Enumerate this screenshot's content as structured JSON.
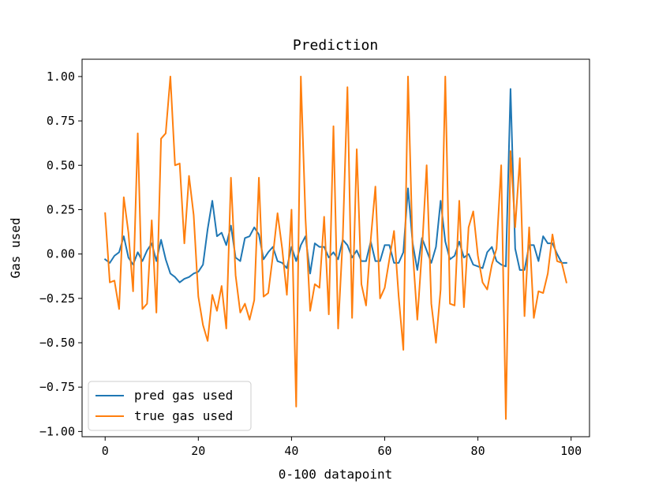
{
  "chart_data": {
    "type": "line",
    "title": "Prediction",
    "xlabel": "0-100 datapoint",
    "ylabel": "Gas used",
    "xlim": [
      -4.95,
      103.95
    ],
    "ylim": [
      -1.0295,
      1.0975
    ],
    "xticks": [
      0,
      20,
      40,
      60,
      80,
      100
    ],
    "xtick_labels": [
      "0",
      "20",
      "40",
      "60",
      "80",
      "100"
    ],
    "yticks": [
      -1.0,
      -0.75,
      -0.5,
      -0.25,
      0.0,
      0.25,
      0.5,
      0.75,
      1.0
    ],
    "ytick_labels": [
      "−1.00",
      "−0.75",
      "−0.50",
      "−0.25",
      "0.00",
      "0.25",
      "0.50",
      "0.75",
      "1.00"
    ],
    "grid": false,
    "legend_position": "lower-left",
    "x": [
      0,
      1,
      2,
      3,
      4,
      5,
      6,
      7,
      8,
      9,
      10,
      11,
      12,
      13,
      14,
      15,
      16,
      17,
      18,
      19,
      20,
      21,
      22,
      23,
      24,
      25,
      26,
      27,
      28,
      29,
      30,
      31,
      32,
      33,
      34,
      35,
      36,
      37,
      38,
      39,
      40,
      41,
      42,
      43,
      44,
      45,
      46,
      47,
      48,
      49,
      50,
      51,
      52,
      53,
      54,
      55,
      56,
      57,
      58,
      59,
      60,
      61,
      62,
      63,
      64,
      65,
      66,
      67,
      68,
      69,
      70,
      71,
      72,
      73,
      74,
      75,
      76,
      77,
      78,
      79,
      80,
      81,
      82,
      83,
      84,
      85,
      86,
      87,
      88,
      89,
      90,
      91,
      92,
      93,
      94,
      95,
      96,
      97,
      98,
      99
    ],
    "series": [
      {
        "name": "pred gas used",
        "color": "#1f77b4",
        "values": [
          -0.03,
          -0.05,
          -0.01,
          0.01,
          0.1,
          -0.02,
          -0.06,
          0.01,
          -0.04,
          0.02,
          0.06,
          -0.04,
          0.08,
          -0.03,
          -0.11,
          -0.13,
          -0.16,
          -0.14,
          -0.13,
          -0.11,
          -0.1,
          -0.06,
          0.14,
          0.3,
          0.1,
          0.12,
          0.05,
          0.16,
          -0.02,
          -0.04,
          0.09,
          0.1,
          0.15,
          0.11,
          -0.03,
          0.01,
          0.04,
          -0.04,
          -0.05,
          -0.08,
          0.04,
          -0.04,
          0.05,
          0.1,
          -0.11,
          0.06,
          0.04,
          0.04,
          -0.02,
          0.01,
          -0.03,
          0.08,
          0.05,
          -0.02,
          0.02,
          -0.04,
          -0.04,
          0.07,
          -0.04,
          -0.04,
          0.05,
          0.05,
          -0.05,
          -0.05,
          0.01,
          0.37,
          0.06,
          -0.09,
          0.09,
          0.02,
          -0.05,
          0.04,
          0.3,
          0.07,
          -0.03,
          -0.01,
          0.07,
          -0.02,
          0.0,
          -0.06,
          -0.07,
          -0.08,
          0.01,
          0.04,
          -0.04,
          -0.06,
          -0.07,
          0.93,
          0.03,
          -0.09,
          -0.09,
          0.05,
          0.05,
          -0.04,
          0.1,
          0.06,
          0.06,
          0.0,
          -0.05,
          -0.05
        ]
      },
      {
        "name": "true gas used",
        "color": "#ff7f0e",
        "values": [
          0.23,
          -0.16,
          -0.15,
          -0.31,
          0.32,
          0.12,
          -0.21,
          0.68,
          -0.31,
          -0.28,
          0.19,
          -0.33,
          0.65,
          0.68,
          1.0,
          0.5,
          0.51,
          0.06,
          0.44,
          0.22,
          -0.24,
          -0.4,
          -0.49,
          -0.23,
          -0.32,
          -0.18,
          -0.42,
          0.43,
          -0.12,
          -0.33,
          -0.28,
          -0.37,
          -0.26,
          0.43,
          -0.24,
          -0.22,
          -0.01,
          0.23,
          0.03,
          -0.23,
          0.25,
          -0.86,
          1.0,
          0.2,
          -0.32,
          -0.17,
          -0.19,
          0.21,
          -0.34,
          0.72,
          -0.42,
          0.09,
          0.94,
          -0.36,
          0.59,
          -0.17,
          -0.29,
          0.08,
          0.38,
          -0.25,
          -0.19,
          -0.03,
          0.13,
          -0.24,
          -0.54,
          1.0,
          0.02,
          -0.37,
          0.02,
          0.5,
          -0.28,
          -0.5,
          -0.2,
          1.0,
          -0.28,
          -0.29,
          0.3,
          -0.3,
          0.15,
          0.24,
          -0.01,
          -0.16,
          -0.2,
          -0.06,
          0.03,
          0.5,
          -0.93,
          0.58,
          0.15,
          0.54,
          -0.35,
          0.15,
          -0.36,
          -0.21,
          -0.22,
          -0.11,
          0.11,
          -0.04,
          -0.05,
          -0.16
        ]
      }
    ]
  }
}
